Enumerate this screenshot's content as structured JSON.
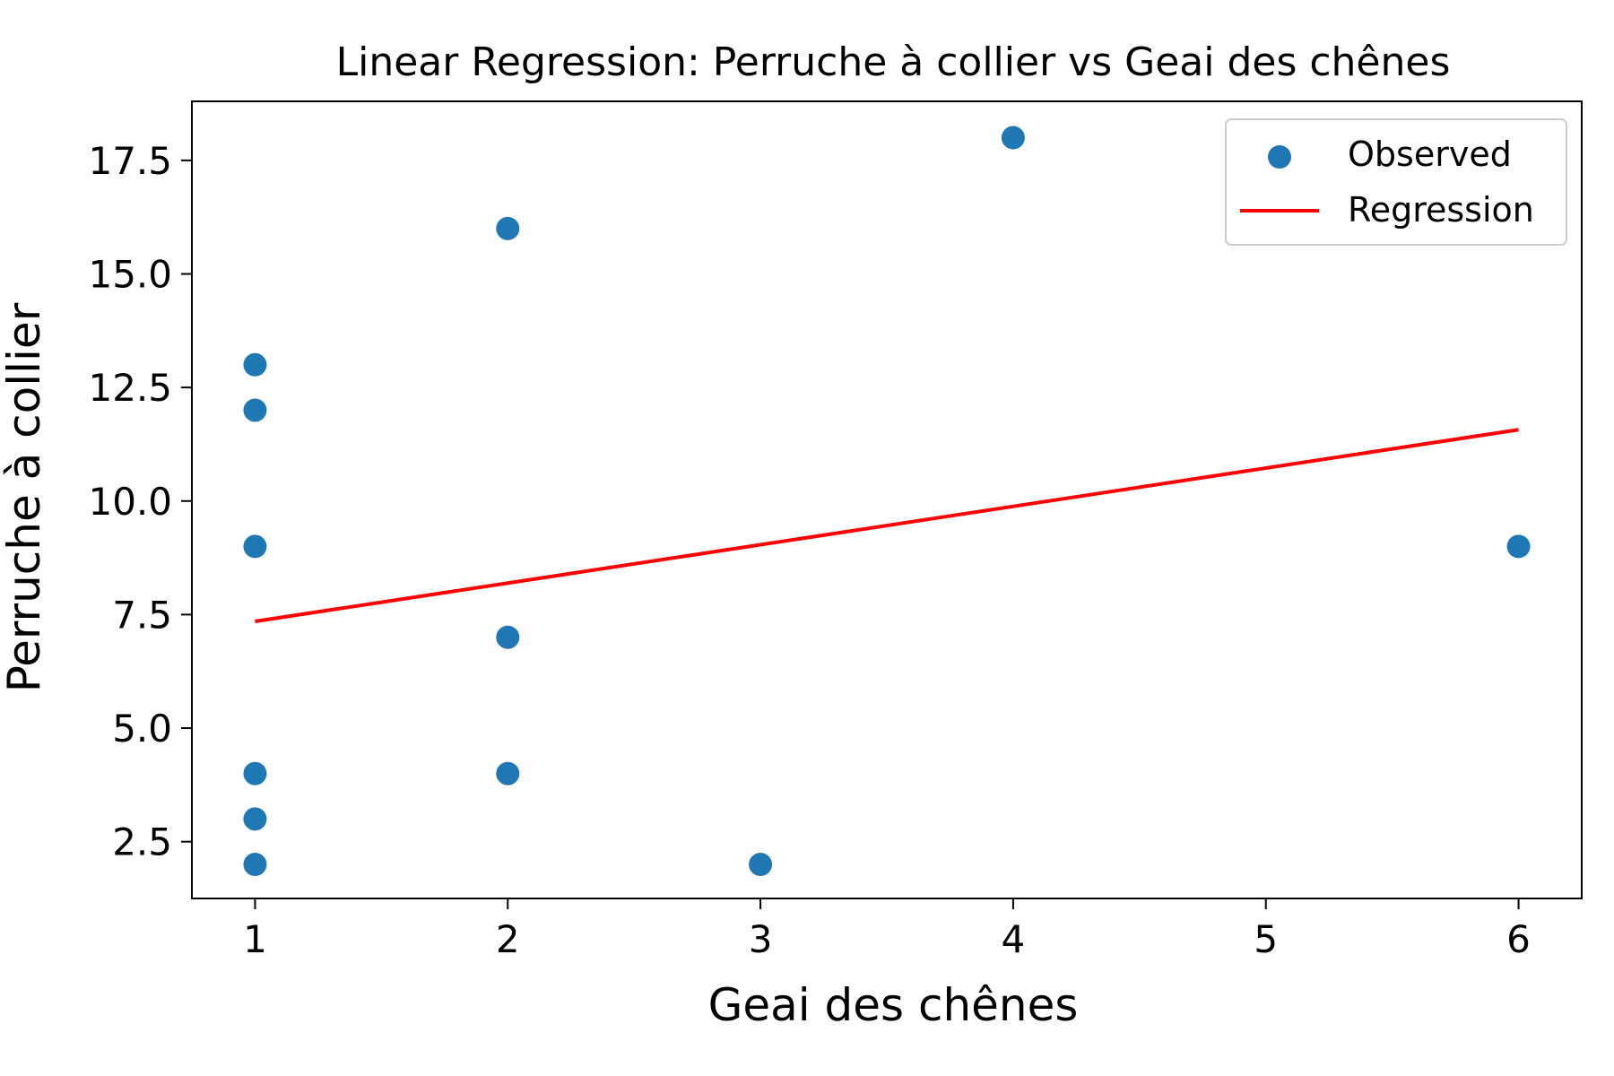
{
  "chart_data": {
    "type": "scatter",
    "title": "Linear Regression: Perruche à collier vs Geai des chênes",
    "xlabel": "Geai des chênes",
    "ylabel": "Perruche à collier",
    "xlim": [
      0.75,
      6.25
    ],
    "ylim": [
      1.25,
      18.8
    ],
    "x_ticks": [
      1,
      2,
      3,
      4,
      5,
      6
    ],
    "x_tick_labels": [
      "1",
      "2",
      "3",
      "4",
      "5",
      "6"
    ],
    "y_ticks": [
      2.5,
      5.0,
      7.5,
      10.0,
      12.5,
      15.0,
      17.5
    ],
    "y_tick_labels": [
      "2.5",
      "5.0",
      "7.5",
      "10.0",
      "12.5",
      "15.0",
      "17.5"
    ],
    "grid": false,
    "legend_position": "top-right",
    "series": [
      {
        "name": "Observed",
        "kind": "scatter",
        "color": "#1f77b4",
        "points": [
          {
            "x": 1,
            "y": 13
          },
          {
            "x": 1,
            "y": 12
          },
          {
            "x": 1,
            "y": 9
          },
          {
            "x": 1,
            "y": 4
          },
          {
            "x": 1,
            "y": 3
          },
          {
            "x": 1,
            "y": 2
          },
          {
            "x": 2,
            "y": 16
          },
          {
            "x": 2,
            "y": 7
          },
          {
            "x": 2,
            "y": 4
          },
          {
            "x": 3,
            "y": 2
          },
          {
            "x": 4,
            "y": 18
          },
          {
            "x": 6,
            "y": 9
          }
        ]
      },
      {
        "name": "Regression",
        "kind": "line",
        "color": "#ff0000",
        "points": [
          {
            "x": 1,
            "y": 7.35
          },
          {
            "x": 6,
            "y": 11.57
          }
        ]
      }
    ]
  }
}
